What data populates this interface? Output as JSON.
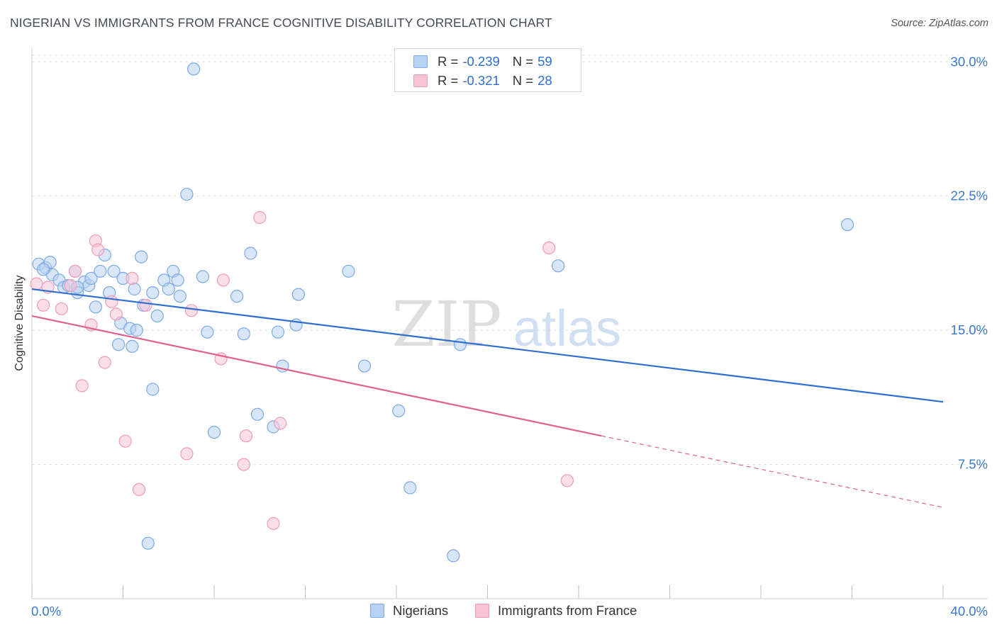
{
  "title": "NIGERIAN VS IMMIGRANTS FROM FRANCE COGNITIVE DISABILITY CORRELATION CHART",
  "source": "Source: ZipAtlas.com",
  "watermark": {
    "zip": "ZIP",
    "atlas": "atlas"
  },
  "legend_top": [
    {
      "label": "R =",
      "r": "-0.239",
      "n_label": "N =",
      "n": "59"
    },
    {
      "label": "R =",
      "r": "-0.321",
      "n_label": "N =",
      "n": "28"
    }
  ],
  "chart_data": {
    "type": "scatter",
    "title": "NIGERIAN VS IMMIGRANTS FROM FRANCE COGNITIVE DISABILITY CORRELATION CHART",
    "xlabel": "",
    "ylabel": "Cognitive Disability",
    "xlim": [
      0,
      40
    ],
    "ylim": [
      0,
      31
    ],
    "x_tick_labels": [
      "0.0%",
      "40.0%"
    ],
    "y_ticks": [
      7.5,
      15.0,
      22.5,
      30.0
    ],
    "y_tick_labels": [
      "7.5%",
      "15.0%",
      "22.5%",
      "30.0%"
    ],
    "grid": true,
    "legend_position": "bottom",
    "series": [
      {
        "name": "Nigerians",
        "color": "#7aa9e6",
        "fill": "#b9d2f3",
        "trend_color": "#2f6fd0",
        "r": -0.239,
        "n": 59,
        "trend": {
          "x": [
            0,
            40
          ],
          "y": [
            17.3,
            11.0
          ]
        },
        "points": [
          [
            0.3,
            18.7
          ],
          [
            0.6,
            18.5
          ],
          [
            0.8,
            18.8
          ],
          [
            0.9,
            18.1
          ],
          [
            1.2,
            17.8
          ],
          [
            1.4,
            17.4
          ],
          [
            1.6,
            17.5
          ],
          [
            2.0,
            17.1
          ],
          [
            1.9,
            18.3
          ],
          [
            2.3,
            17.7
          ],
          [
            2.5,
            17.5
          ],
          [
            2.6,
            17.9
          ],
          [
            2.8,
            16.3
          ],
          [
            3.0,
            18.3
          ],
          [
            3.2,
            19.2
          ],
          [
            3.4,
            17.1
          ],
          [
            3.6,
            18.3
          ],
          [
            3.9,
            15.4
          ],
          [
            4.0,
            17.9
          ],
          [
            4.3,
            15.1
          ],
          [
            4.4,
            14.1
          ],
          [
            4.5,
            17.3
          ],
          [
            4.8,
            19.1
          ],
          [
            4.9,
            16.4
          ],
          [
            5.3,
            17.1
          ],
          [
            5.5,
            15.8
          ],
          [
            5.8,
            17.8
          ],
          [
            6.0,
            17.3
          ],
          [
            6.2,
            18.3
          ],
          [
            6.4,
            17.8
          ],
          [
            6.5,
            16.9
          ],
          [
            6.8,
            22.6
          ],
          [
            7.1,
            29.6
          ],
          [
            7.5,
            18.0
          ],
          [
            7.7,
            14.9
          ],
          [
            8.0,
            9.3
          ],
          [
            9.0,
            16.9
          ],
          [
            9.3,
            14.8
          ],
          [
            9.6,
            19.3
          ],
          [
            9.9,
            10.3
          ],
          [
            10.6,
            9.6
          ],
          [
            10.8,
            14.9
          ],
          [
            11.0,
            13.0
          ],
          [
            11.6,
            15.3
          ],
          [
            11.7,
            17.0
          ],
          [
            13.9,
            18.3
          ],
          [
            14.6,
            13.0
          ],
          [
            16.1,
            10.5
          ],
          [
            16.6,
            6.2
          ],
          [
            18.5,
            2.4
          ],
          [
            18.8,
            14.2
          ],
          [
            23.1,
            18.6
          ],
          [
            35.8,
            20.9
          ],
          [
            5.1,
            3.1
          ],
          [
            3.8,
            14.2
          ],
          [
            2.0,
            17.4
          ],
          [
            0.5,
            18.4
          ],
          [
            5.3,
            11.7
          ],
          [
            4.6,
            15.0
          ]
        ]
      },
      {
        "name": "Immigrants from France",
        "color": "#ef9ab8",
        "fill": "#f7c4d5",
        "trend_color": "#e0608e",
        "r": -0.321,
        "n": 28,
        "trend": {
          "x": [
            0,
            25
          ],
          "y": [
            15.8,
            9.1
          ]
        },
        "trend_dashed": {
          "x": [
            25,
            40
          ],
          "y": [
            9.1,
            5.1
          ]
        },
        "points": [
          [
            0.2,
            17.6
          ],
          [
            0.5,
            16.4
          ],
          [
            0.7,
            17.4
          ],
          [
            1.3,
            16.2
          ],
          [
            1.7,
            17.5
          ],
          [
            1.9,
            18.3
          ],
          [
            2.2,
            11.9
          ],
          [
            2.6,
            15.3
          ],
          [
            2.8,
            20.0
          ],
          [
            2.9,
            19.5
          ],
          [
            3.2,
            13.2
          ],
          [
            3.5,
            16.6
          ],
          [
            3.7,
            15.9
          ],
          [
            4.1,
            8.8
          ],
          [
            4.4,
            17.9
          ],
          [
            4.7,
            6.1
          ],
          [
            5.0,
            16.4
          ],
          [
            6.8,
            8.1
          ],
          [
            7.0,
            16.1
          ],
          [
            8.3,
            13.4
          ],
          [
            8.4,
            17.8
          ],
          [
            9.3,
            7.5
          ],
          [
            9.4,
            9.1
          ],
          [
            10.0,
            21.3
          ],
          [
            10.6,
            4.2
          ],
          [
            10.9,
            9.8
          ],
          [
            22.7,
            19.6
          ],
          [
            23.5,
            6.6
          ]
        ]
      }
    ]
  }
}
